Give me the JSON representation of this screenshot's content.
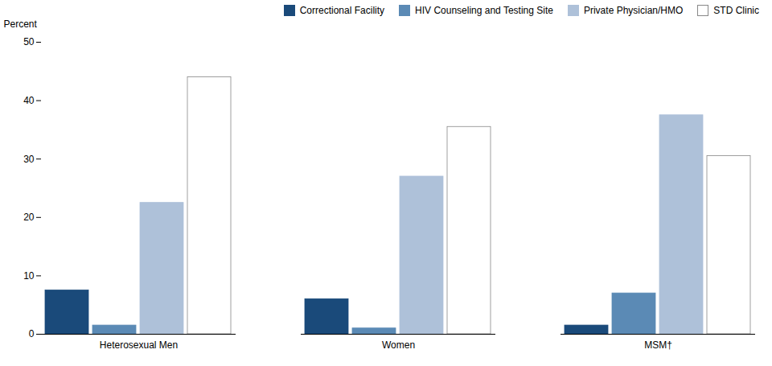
{
  "chart_data": {
    "type": "bar",
    "categories": [
      "Heterosexual Men",
      "Women",
      "MSM†"
    ],
    "series": [
      {
        "name": "Correctional Facility",
        "color": "#1a4a7a",
        "values": [
          7.5,
          6.0,
          1.5
        ]
      },
      {
        "name": "HIV Counseling and Testing Site",
        "color": "#5b8ab5",
        "values": [
          1.5,
          1.0,
          7.0
        ]
      },
      {
        "name": "Private Physician/HMO",
        "color": "#aec1d9",
        "values": [
          22.5,
          27.0,
          37.5
        ]
      },
      {
        "name": "STD Clinic",
        "color": "#ffffff",
        "values": [
          44.0,
          35.5,
          30.5
        ]
      }
    ],
    "ylabel": "Percent",
    "ylim": [
      0,
      50
    ],
    "yticks": [
      0,
      10,
      20,
      30,
      40,
      50
    ],
    "grid": false,
    "legend": "upper right"
  }
}
